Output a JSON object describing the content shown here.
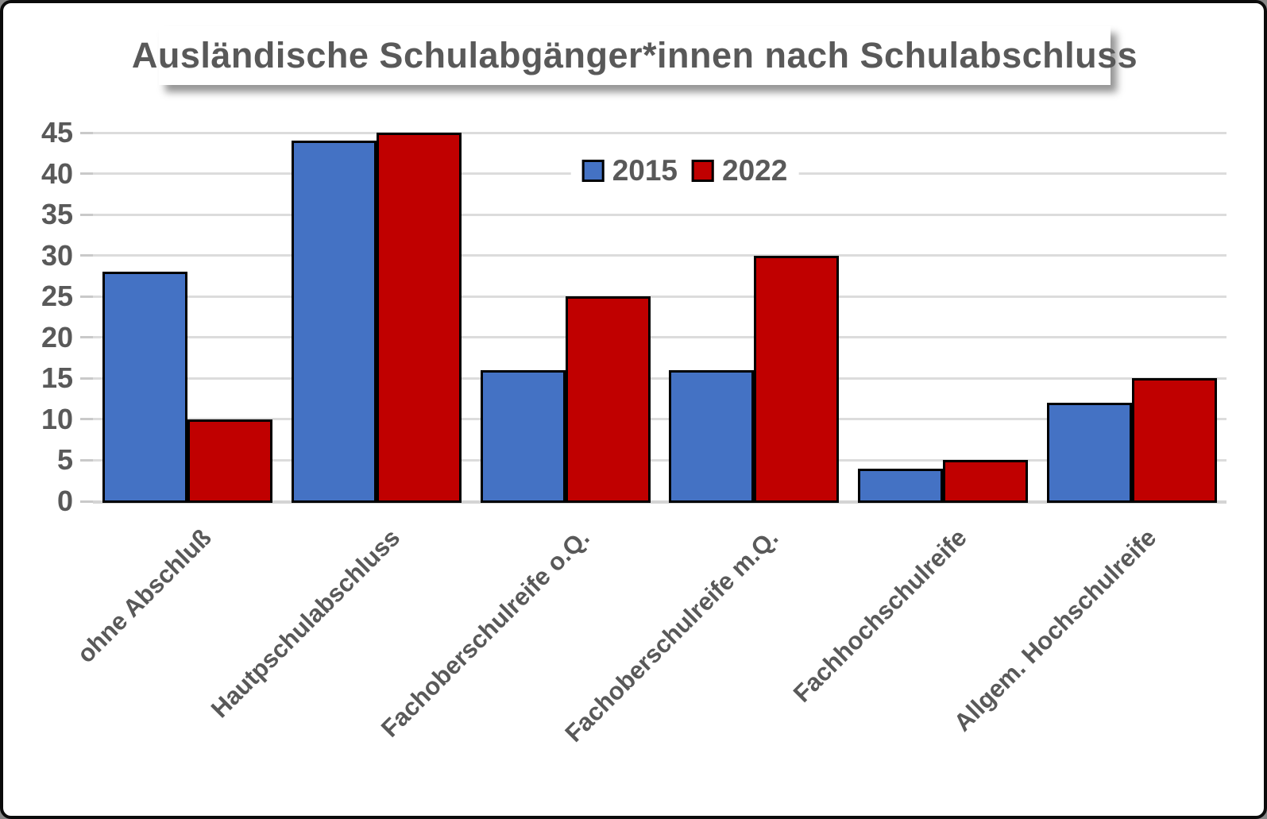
{
  "title": "Ausländische Schulabgänger*innen nach Schulabschluss",
  "colors": {
    "series_2015": "#4472C4",
    "series_2022": "#C00000",
    "grid": "#DCDCDC",
    "text": "#595959",
    "bar_border": "#000000",
    "background": "#FFFFFF",
    "frame": "#0B0B0B"
  },
  "legend": {
    "position": "top-center",
    "items": [
      {
        "label": "2015",
        "color": "#4472C4"
      },
      {
        "label": "2022",
        "color": "#C00000"
      }
    ]
  },
  "y_axis": {
    "min": 0,
    "max": 45,
    "step": 5,
    "tick_labels": [
      "0",
      "5",
      "10",
      "15",
      "20",
      "25",
      "30",
      "35",
      "40",
      "45"
    ]
  },
  "chart_data": {
    "type": "bar",
    "categories": [
      "ohne Abschluß",
      "Hautpschulabschluss",
      "Fachoberschulreife o.Q.",
      "Fachoberschulreife m.Q.",
      "Fachhochschulreife",
      "Allgem. Hochschulreife"
    ],
    "series": [
      {
        "name": "2015",
        "color": "#4472C4",
        "values": [
          28,
          44,
          16,
          16,
          4,
          12
        ]
      },
      {
        "name": "2022",
        "color": "#C00000",
        "values": [
          10,
          45,
          25,
          30,
          5,
          15
        ]
      }
    ],
    "title": "Ausländische Schulabgänger*innen nach Schulabschluss",
    "xlabel": "",
    "ylabel": "",
    "ylim": [
      0,
      45
    ],
    "ytick_step": 5,
    "grid": "horizontal",
    "legend_position": "top-center"
  }
}
